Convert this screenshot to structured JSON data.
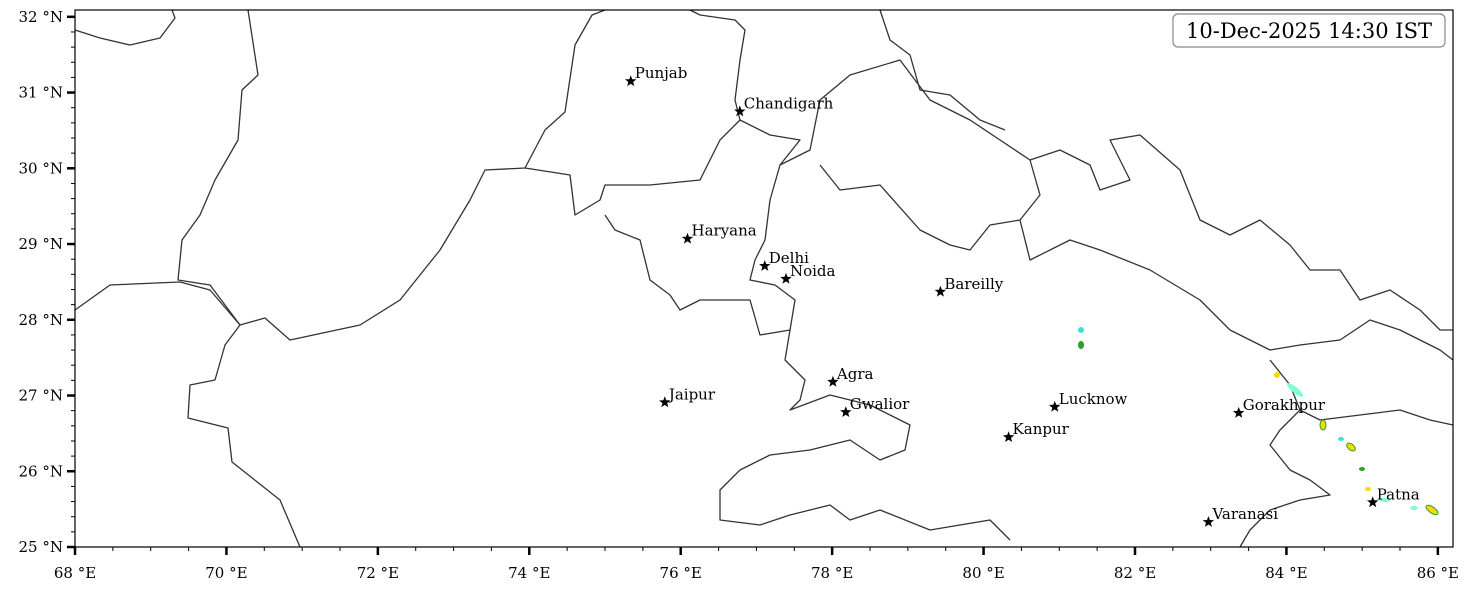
{
  "timestamp": "10-Dec-2025 14:30 IST",
  "map": {
    "extent": {
      "lon": [
        68,
        86.2
      ],
      "lat": [
        25,
        32.09
      ]
    },
    "x_ticks": [
      68,
      70,
      72,
      74,
      76,
      78,
      80,
      82,
      84,
      86
    ],
    "x_tick_labels": [
      "68 °E",
      "70 °E",
      "72 °E",
      "74 °E",
      "76 °E",
      "78 °E",
      "80 °E",
      "82 °E",
      "84 °E",
      "86 °E"
    ],
    "y_ticks": [
      25,
      26,
      27,
      28,
      29,
      30,
      31,
      32
    ],
    "y_tick_labels": [
      "25 °N",
      "26 °N",
      "27 °N",
      "28 °N",
      "29 °N",
      "30 °N",
      "31 °N",
      "32 °N"
    ],
    "boundary_color": "#333333",
    "marker": "star",
    "precip_colors": [
      "#7fffd4",
      "#40e0d0",
      "#2ca02c",
      "#ffd700",
      "#ff8c00"
    ]
  },
  "cities": [
    {
      "name": "Punjab",
      "lon": 75.34,
      "lat": 31.15
    },
    {
      "name": "Chandigarh",
      "lon": 76.78,
      "lat": 30.75
    },
    {
      "name": "Haryana",
      "lon": 76.09,
      "lat": 29.07
    },
    {
      "name": "Delhi",
      "lon": 77.11,
      "lat": 28.71
    },
    {
      "name": "Noida",
      "lon": 77.39,
      "lat": 28.54
    },
    {
      "name": "Bareilly",
      "lon": 79.43,
      "lat": 28.37
    },
    {
      "name": "Agra",
      "lon": 78.01,
      "lat": 27.18
    },
    {
      "name": "Jaipur",
      "lon": 75.79,
      "lat": 26.91
    },
    {
      "name": "Gwalior",
      "lon": 78.18,
      "lat": 26.78
    },
    {
      "name": "Lucknow",
      "lon": 80.94,
      "lat": 26.85
    },
    {
      "name": "Kanpur",
      "lon": 80.33,
      "lat": 26.45
    },
    {
      "name": "Gorakhpur",
      "lon": 83.37,
      "lat": 26.77
    },
    {
      "name": "Patna",
      "lon": 85.14,
      "lat": 25.59
    },
    {
      "name": "Varanasi",
      "lon": 82.97,
      "lat": 25.33
    }
  ]
}
